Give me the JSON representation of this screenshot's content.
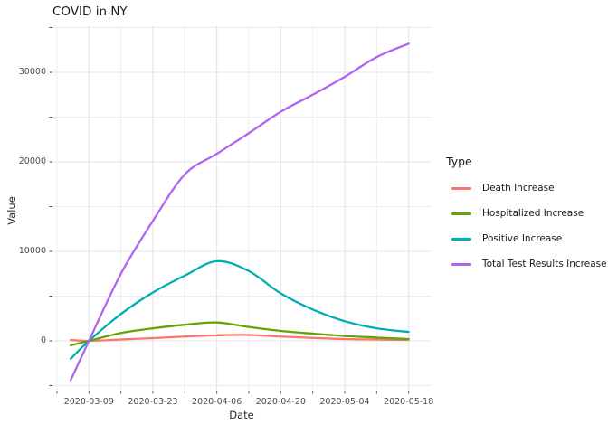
{
  "title": "COVID in NY",
  "axes": {
    "x": {
      "label": "Date",
      "major_ticks": [
        "2020-03-09",
        "2020-03-23",
        "2020-04-06",
        "2020-04-20",
        "2020-05-04",
        "2020-05-18"
      ],
      "minor_ticks": [
        "2020-03-02",
        "2020-03-16",
        "2020-03-30",
        "2020-04-13",
        "2020-04-27",
        "2020-05-11"
      ]
    },
    "y": {
      "label": "Value",
      "major_ticks": [
        0,
        10000,
        20000,
        30000
      ],
      "minor_ticks": [
        -5000,
        5000,
        15000,
        25000,
        35000
      ]
    }
  },
  "legend": {
    "title": "Type",
    "items": [
      {
        "label": "Death Increase",
        "color": "#F8766D"
      },
      {
        "label": "Hospitalized Increase",
        "color": "#66A203"
      },
      {
        "label": "Positive Increase",
        "color": "#00ADB5"
      },
      {
        "label": "Total Test Results Increase",
        "color": "#AF65F0"
      }
    ]
  },
  "colors": {
    "grid_major": "#E4E4E4",
    "grid_minor": "#EDEDED",
    "tick_mark": "#555555",
    "panel_background": "#FFFFFF"
  },
  "chart_data": {
    "type": "line",
    "title": "COVID in NY",
    "xlabel": "Date",
    "ylabel": "Value",
    "x": [
      "2020-03-05",
      "2020-03-09",
      "2020-03-16",
      "2020-03-23",
      "2020-03-30",
      "2020-04-06",
      "2020-04-13",
      "2020-04-20",
      "2020-04-27",
      "2020-05-04",
      "2020-05-11",
      "2020-05-18"
    ],
    "series": [
      {
        "name": "Death Increase",
        "color": "#F8766D",
        "values": [
          100,
          0,
          150,
          300,
          480,
          620,
          660,
          480,
          330,
          200,
          150,
          100
        ]
      },
      {
        "name": "Hospitalized Increase",
        "color": "#66A203",
        "values": [
          -500,
          0,
          880,
          1400,
          1800,
          2050,
          1550,
          1110,
          810,
          540,
          370,
          200
        ]
      },
      {
        "name": "Positive Increase",
        "color": "#00ADB5",
        "values": [
          -2000,
          0,
          3000,
          5400,
          7300,
          8900,
          7800,
          5300,
          3500,
          2200,
          1400,
          1000
        ]
      },
      {
        "name": "Total Test Results Increase",
        "color": "#AF65F0",
        "values": [
          -4400,
          0,
          7500,
          13400,
          18600,
          20900,
          23200,
          25600,
          27500,
          29500,
          31700,
          33200
        ]
      }
    ],
    "ylim": [
      -5556,
      35253
    ],
    "xlim": [
      "2020-03-01",
      "2020-05-23"
    ],
    "grid": true,
    "legend_position": "right"
  }
}
